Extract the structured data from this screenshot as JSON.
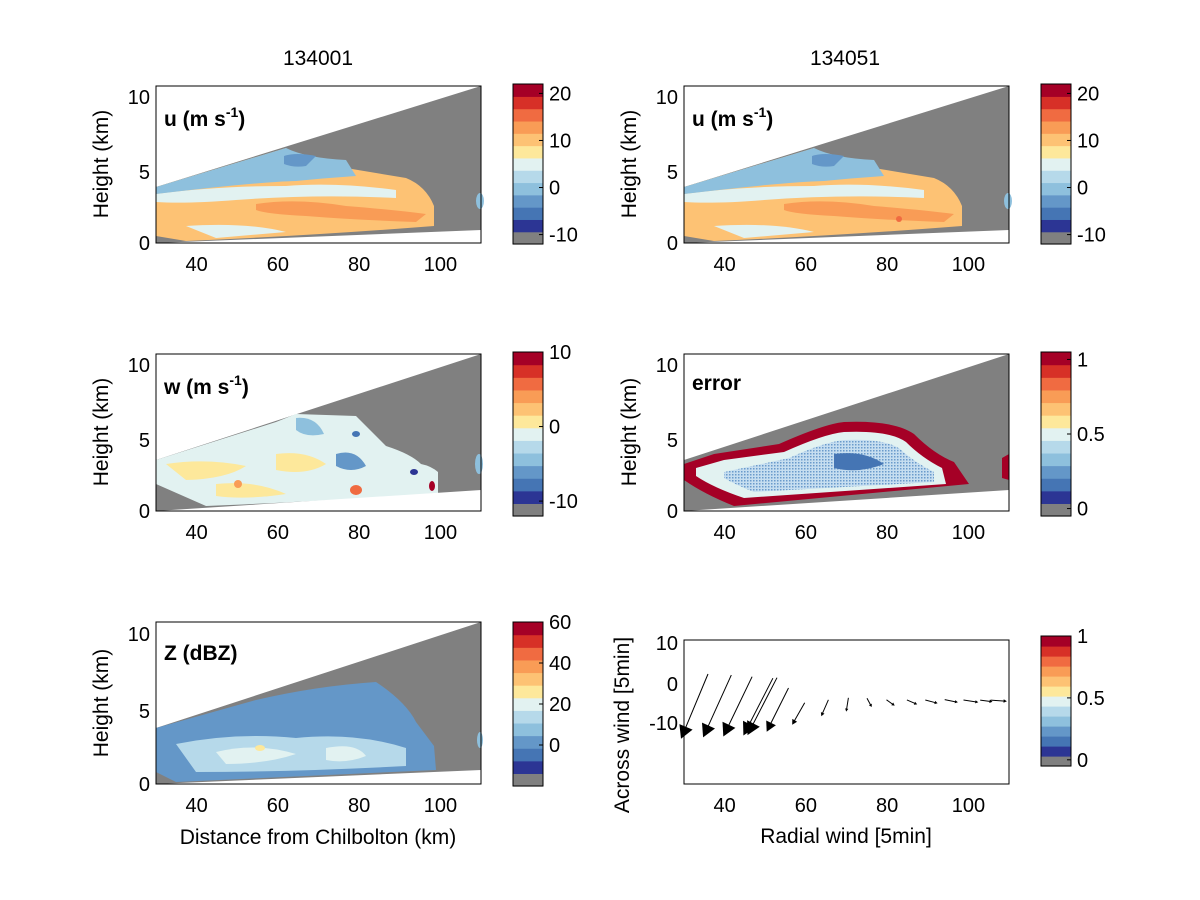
{
  "figure": {
    "column_titles": [
      "134001",
      "134051"
    ]
  },
  "colors": {
    "gray": "#808080",
    "palette": [
      "#808080",
      "#2c3594",
      "#4575b4",
      "#6497c8",
      "#8ec0dd",
      "#b6d9ea",
      "#e2f2f1",
      "#fde89b",
      "#fdc274",
      "#f99c56",
      "#f06b41",
      "#d73027",
      "#a50026"
    ]
  },
  "chart_data": [
    {
      "id": "u-left",
      "type": "heatmap",
      "label": "u (m s",
      "label_sup": "-1",
      "label_close": ")",
      "xlabel": "",
      "ylabel": "Height (km)",
      "xlim": [
        30,
        110
      ],
      "ylim": [
        0,
        11
      ],
      "xticks": [
        40,
        60,
        80,
        100
      ],
      "yticks": [
        0,
        5,
        10
      ],
      "colorbar": {
        "range": [
          -12,
          22
        ],
        "ticks": [
          -10,
          0,
          10,
          20
        ],
        "labels": [
          "-10",
          "0",
          "10",
          "20"
        ]
      }
    },
    {
      "id": "u-right",
      "type": "heatmap",
      "label": "u (m s",
      "label_sup": "-1",
      "label_close": ")",
      "xlabel": "",
      "ylabel": "Height (km)",
      "xlim": [
        30,
        110
      ],
      "ylim": [
        0,
        11
      ],
      "xticks": [
        40,
        60,
        80,
        100
      ],
      "yticks": [
        0,
        5,
        10
      ],
      "colorbar": {
        "range": [
          -12,
          22
        ],
        "ticks": [
          -10,
          0,
          10,
          20
        ],
        "labels": [
          "-10",
          "0",
          "10",
          "20"
        ]
      }
    },
    {
      "id": "w-left",
      "type": "heatmap",
      "label": "w (m s",
      "label_sup": "-1",
      "label_close": ")",
      "xlabel": "",
      "ylabel": "Height (km)",
      "xlim": [
        30,
        110
      ],
      "ylim": [
        0,
        11
      ],
      "xticks": [
        40,
        60,
        80,
        100
      ],
      "yticks": [
        0,
        5,
        10
      ],
      "colorbar": {
        "range": [
          -12,
          10
        ],
        "ticks": [
          -10,
          0,
          10
        ],
        "labels": [
          "-10",
          "0",
          "10"
        ]
      }
    },
    {
      "id": "error-right",
      "type": "heatmap",
      "label": "error",
      "label_sup": "",
      "label_close": "",
      "xlabel": "",
      "ylabel": "Height (km)",
      "xlim": [
        30,
        110
      ],
      "ylim": [
        0,
        11
      ],
      "xticks": [
        40,
        60,
        80,
        100
      ],
      "yticks": [
        0,
        5,
        10
      ],
      "colorbar": {
        "range": [
          -0.05,
          1.05
        ],
        "ticks": [
          0,
          0.5,
          1
        ],
        "labels": [
          "0",
          "0.5",
          "1"
        ]
      }
    },
    {
      "id": "z-left",
      "type": "heatmap",
      "label": "Z (dBZ)",
      "label_sup": "",
      "label_close": "",
      "xlabel": "Distance from Chilbolton (km)",
      "ylabel": "Height (km)",
      "xlim": [
        30,
        110
      ],
      "ylim": [
        0,
        11
      ],
      "xticks": [
        40,
        60,
        80,
        100
      ],
      "yticks": [
        0,
        5,
        10
      ],
      "colorbar": {
        "range": [
          -20,
          60
        ],
        "ticks": [
          0,
          20,
          40,
          60
        ],
        "labels": [
          "0",
          "20",
          "40",
          "60"
        ]
      }
    },
    {
      "id": "quiver-right",
      "type": "scatter",
      "label": "",
      "label_sup": "",
      "label_close": "",
      "xlabel": "Radial wind [5min]",
      "ylabel": "Across wind [5min]",
      "xlim": [
        30,
        110
      ],
      "ylim": [
        -20,
        13
      ],
      "xticks": [
        40,
        60,
        80,
        100
      ],
      "yticks": [
        -10,
        0,
        10
      ],
      "colorbar": {
        "range": [
          -0.05,
          1
        ],
        "ticks": [
          0,
          0.5,
          1
        ],
        "labels": [
          "0",
          "0.5",
          "1"
        ]
      },
      "arrows": [
        {
          "x": 30,
          "y": -8,
          "u": 5,
          "v": 12
        },
        {
          "x": 35.5,
          "y": -7.7,
          "u": 5.2,
          "v": 11.5
        },
        {
          "x": 40.5,
          "y": -7.5,
          "u": 5.3,
          "v": 11
        },
        {
          "x": 45.5,
          "y": -7.3,
          "u": 5.4,
          "v": 10.5
        },
        {
          "x": 46.5,
          "y": -7.2,
          "u": 5.4,
          "v": 10.5
        },
        {
          "x": 51,
          "y": -6.8,
          "u": 4,
          "v": 8
        },
        {
          "x": 57,
          "y": -5.8,
          "u": 2.3,
          "v": 4
        },
        {
          "x": 64,
          "y": -4,
          "u": 1.3,
          "v": 3
        },
        {
          "x": 70,
          "y": -3,
          "u": 0.4,
          "v": 2.5
        },
        {
          "x": 76,
          "y": -2,
          "u": -0.8,
          "v": 1.5
        },
        {
          "x": 81.5,
          "y": -1.8,
          "u": -1.4,
          "v": 1
        },
        {
          "x": 87,
          "y": -1.6,
          "u": -1.8,
          "v": 0.8
        },
        {
          "x": 92,
          "y": -1.4,
          "u": -2.2,
          "v": 0.6
        },
        {
          "x": 97,
          "y": -1.2,
          "u": -2.4,
          "v": 0.5
        },
        {
          "x": 102,
          "y": -1.2,
          "u": -2.7,
          "v": 0.4
        },
        {
          "x": 105.5,
          "y": -1.1,
          "u": -2.2,
          "v": 0.3
        },
        {
          "x": 109,
          "y": -1,
          "u": -3,
          "v": 0.2
        }
      ]
    }
  ]
}
